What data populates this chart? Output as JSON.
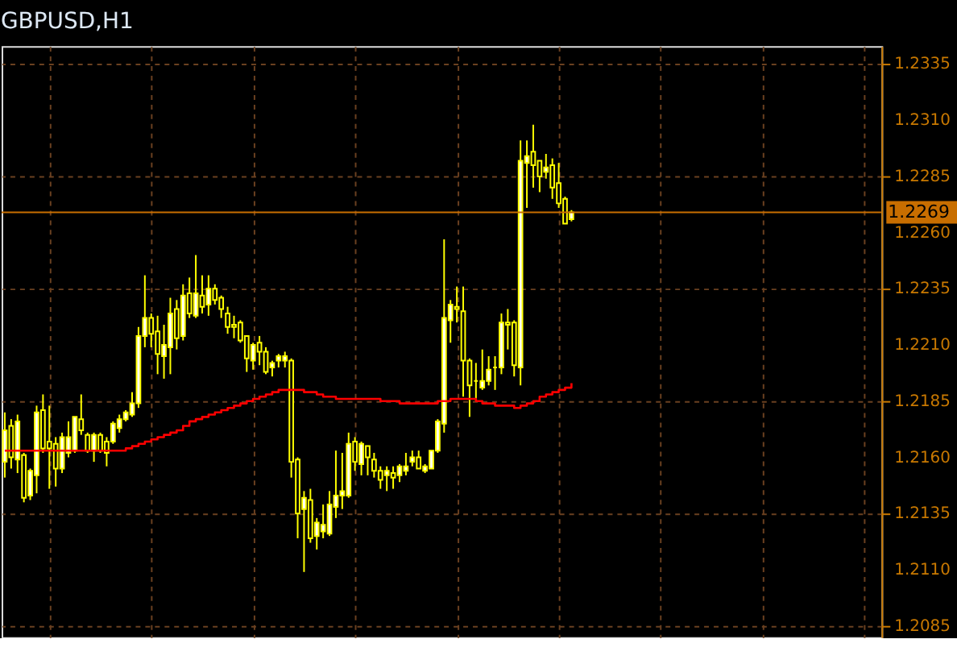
{
  "chart_data": {
    "type": "candlestick",
    "title": "GBPUSD,H1",
    "categories": [
      null,
      null,
      null,
      null,
      null,
      null,
      null,
      null,
      null,
      null,
      null,
      null,
      null,
      null,
      null,
      null,
      null,
      null,
      null,
      null,
      null,
      null,
      null,
      null,
      null,
      null,
      null,
      null,
      null,
      null,
      null,
      null,
      null,
      null,
      null,
      null,
      null,
      null,
      null,
      null,
      null,
      null,
      null,
      null,
      null,
      null,
      null,
      null,
      null,
      null,
      null,
      null,
      null,
      null,
      null,
      null,
      null,
      null,
      null,
      null,
      null,
      null,
      null,
      null,
      null,
      null,
      null,
      null,
      null,
      null,
      null,
      null,
      null,
      null,
      null,
      null,
      null,
      null,
      null,
      null,
      null,
      null,
      null,
      null,
      null,
      null,
      null,
      null,
      null,
      null
    ],
    "series": [
      {
        "color": "#ffff00",
        "ohlc": [
          [
            1.2158,
            1.218,
            1.2151,
            1.2172
          ],
          [
            1.2174,
            1.2177,
            1.2155,
            1.216
          ],
          [
            1.2159,
            1.2179,
            1.2153,
            1.2176
          ],
          [
            1.2161,
            1.2162,
            1.214,
            1.2142
          ],
          [
            1.2143,
            1.2155,
            1.2141,
            1.2154
          ],
          [
            1.2152,
            1.2183,
            1.2144,
            1.218
          ],
          [
            1.2181,
            1.2188,
            1.2162,
            1.2164
          ],
          [
            1.2167,
            1.2183,
            1.2146,
            1.2164
          ],
          [
            1.2166,
            1.2169,
            1.2147,
            1.2155
          ],
          [
            1.2155,
            1.2171,
            1.2153,
            1.2169
          ],
          [
            1.2162,
            1.2176,
            1.216,
            1.2169
          ],
          [
            1.2163,
            1.2178,
            1.2162,
            1.2178
          ],
          [
            1.2177,
            1.2188,
            1.217,
            1.2172
          ],
          [
            1.217,
            1.2171,
            1.2162,
            1.2163
          ],
          [
            1.2163,
            1.2171,
            1.2158,
            1.217
          ],
          [
            1.217,
            1.2171,
            1.2162,
            1.2163
          ],
          [
            1.2167,
            1.2169,
            1.2156,
            1.2162
          ],
          [
            1.2167,
            1.2176,
            1.2166,
            1.2175
          ],
          [
            1.2173,
            1.2179,
            1.2171,
            1.2177
          ],
          [
            1.2177,
            1.2181,
            1.2176,
            1.218
          ],
          [
            1.2179,
            1.2189,
            1.2178,
            1.2184
          ],
          [
            1.2184,
            1.2218,
            1.2182,
            1.2214
          ],
          [
            1.2214,
            1.2241,
            1.2209,
            1.2222
          ],
          [
            1.2222,
            1.2224,
            1.2209,
            1.2215
          ],
          [
            1.2216,
            1.2223,
            1.2197,
            1.2206
          ],
          [
            1.2205,
            1.2219,
            1.2195,
            1.221
          ],
          [
            1.2209,
            1.2231,
            1.2197,
            1.2224
          ],
          [
            1.2226,
            1.223,
            1.2208,
            1.2213
          ],
          [
            1.2214,
            1.2237,
            1.2212,
            1.2232
          ],
          [
            1.2233,
            1.224,
            1.2222,
            1.2224
          ],
          [
            1.2223,
            1.225,
            1.2222,
            1.2233
          ],
          [
            1.2232,
            1.2241,
            1.2224,
            1.2227
          ],
          [
            1.2228,
            1.2241,
            1.2223,
            1.2235
          ],
          [
            1.2235,
            1.2237,
            1.2228,
            1.223
          ],
          [
            1.2231,
            1.2232,
            1.2222,
            1.2226
          ],
          [
            1.2224,
            1.2227,
            1.2215,
            1.2218
          ],
          [
            1.2219,
            1.2223,
            1.2213,
            1.2218
          ],
          [
            1.222,
            1.2221,
            1.2211,
            1.2212
          ],
          [
            1.2214,
            1.2214,
            1.2198,
            1.2204
          ],
          [
            1.2203,
            1.2211,
            1.2199,
            1.221
          ],
          [
            1.2211,
            1.2214,
            1.2201,
            1.2207
          ],
          [
            1.2207,
            1.2209,
            1.2197,
            1.2198
          ],
          [
            1.22,
            1.2203,
            1.2196,
            1.2202
          ],
          [
            1.2203,
            1.2206,
            1.22,
            1.2205
          ],
          [
            1.2203,
            1.2207,
            1.22,
            1.2205
          ],
          [
            1.2203,
            1.2204,
            1.2151,
            1.2158
          ],
          [
            1.2159,
            1.216,
            1.2124,
            1.2135
          ],
          [
            1.2137,
            1.2145,
            1.2109,
            1.2142
          ],
          [
            1.2141,
            1.2146,
            1.2122,
            1.2124
          ],
          [
            1.2125,
            1.2133,
            1.2119,
            1.2131
          ],
          [
            1.2127,
            1.2139,
            1.2124,
            1.213
          ],
          [
            1.2126,
            1.2145,
            1.2125,
            1.2139
          ],
          [
            1.2138,
            1.2163,
            1.2133,
            1.2143
          ],
          [
            1.2143,
            1.2162,
            1.2137,
            1.2145
          ],
          [
            1.2143,
            1.2171,
            1.2142,
            1.2166
          ],
          [
            1.2167,
            1.2169,
            1.2154,
            1.2158
          ],
          [
            1.2157,
            1.2167,
            1.2152,
            1.2166
          ],
          [
            1.2165,
            1.2165,
            1.2152,
            1.216
          ],
          [
            1.2159,
            1.2162,
            1.2151,
            1.2154
          ],
          [
            1.2154,
            1.2156,
            1.2146,
            1.215
          ],
          [
            1.2152,
            1.2156,
            1.2145,
            1.2154
          ],
          [
            1.2153,
            1.2156,
            1.2146,
            1.2151
          ],
          [
            1.2152,
            1.2157,
            1.2149,
            1.2156
          ],
          [
            1.2154,
            1.2162,
            1.2152,
            1.2156
          ],
          [
            1.2158,
            1.2163,
            1.2156,
            1.216
          ],
          [
            1.216,
            1.2163,
            1.2155,
            1.2155
          ],
          [
            1.2154,
            1.2157,
            1.2153,
            1.2156
          ],
          [
            1.2155,
            1.2163,
            1.2155,
            1.2163
          ],
          [
            1.2163,
            1.2177,
            1.2162,
            1.2176
          ],
          [
            1.2175,
            1.2257,
            1.2171,
            1.2222
          ],
          [
            1.2221,
            1.223,
            1.2211,
            1.2228
          ],
          [
            1.2227,
            1.2236,
            1.222,
            1.2226
          ],
          [
            1.2225,
            1.2236,
            1.2187,
            1.2203
          ],
          [
            1.2203,
            1.2204,
            1.2178,
            1.2192
          ],
          [
            1.2194,
            1.2202,
            1.2185,
            1.2194
          ],
          [
            1.2191,
            1.2208,
            1.219,
            1.2194
          ],
          [
            1.2194,
            1.2205,
            1.2192,
            1.2199
          ],
          [
            1.22,
            1.2205,
            1.219,
            1.22
          ],
          [
            1.22,
            1.2224,
            1.2197,
            1.222
          ],
          [
            1.222,
            1.2226,
            1.2208,
            1.2219
          ],
          [
            1.222,
            1.2221,
            1.2196,
            1.2201
          ],
          [
            1.22,
            1.2301,
            1.2192,
            1.2292
          ],
          [
            1.2291,
            1.2301,
            1.2271,
            1.2294
          ],
          [
            1.2296,
            1.2308,
            1.228,
            1.229
          ],
          [
            1.2292,
            1.2292,
            1.2278,
            1.2285
          ],
          [
            1.2287,
            1.2295,
            1.2284,
            1.2289
          ],
          [
            1.229,
            1.2293,
            1.2275,
            1.228
          ],
          [
            1.2282,
            1.2291,
            1.2271,
            1.2273
          ],
          [
            1.2275,
            1.2276,
            1.2264,
            1.2264
          ],
          [
            1.2266,
            1.227,
            1.2265,
            1.2269
          ]
        ]
      },
      {
        "type": "line",
        "color": "#ff0000",
        "values": [
          1.2163,
          1.2163,
          1.2163,
          1.2163,
          1.2163,
          1.2163,
          1.2163,
          1.2163,
          1.2163,
          1.2163,
          1.2163,
          1.2163,
          1.2163,
          1.2163,
          1.2163,
          1.2163,
          1.2163,
          1.2163,
          1.2163,
          1.2164,
          1.2165,
          1.2166,
          1.2167,
          1.2168,
          1.2169,
          1.217,
          1.2171,
          1.2172,
          1.2174,
          1.2176,
          1.2177,
          1.2178,
          1.2179,
          1.218,
          1.2181,
          1.2182,
          1.2183,
          1.2184,
          1.2185,
          1.2186,
          1.2187,
          1.2188,
          1.2189,
          1.219,
          1.219,
          1.219,
          1.219,
          1.2189,
          1.2189,
          1.2188,
          1.2187,
          1.2187,
          1.2186,
          1.2186,
          1.2186,
          1.2186,
          1.2186,
          1.2186,
          1.2186,
          1.2185,
          1.2185,
          1.2185,
          1.2184,
          1.2184,
          1.2184,
          1.2184,
          1.2184,
          1.2184,
          1.2185,
          1.2185,
          1.2186,
          1.2186,
          1.2186,
          1.2186,
          1.2185,
          1.2184,
          1.2184,
          1.2183,
          1.2183,
          1.2183,
          1.2182,
          1.2183,
          1.2184,
          1.2185,
          1.2187,
          1.2188,
          1.2189,
          1.219,
          1.2191,
          1.2193
        ]
      }
    ],
    "ylim": [
      1.208,
      1.2343
    ],
    "yticks": [
      {
        "value": 1.2085,
        "label": "1.2085"
      },
      {
        "value": 1.211,
        "label": "1.2110"
      },
      {
        "value": 1.2135,
        "label": "1.2135"
      },
      {
        "value": 1.216,
        "label": "1.2160"
      },
      {
        "value": 1.2185,
        "label": "1.2185"
      },
      {
        "value": 1.221,
        "label": "1.2210"
      },
      {
        "value": 1.2235,
        "label": "1.2235"
      },
      {
        "value": 1.226,
        "label": "1.2260"
      },
      {
        "value": 1.2285,
        "label": "1.2285"
      },
      {
        "value": 1.231,
        "label": "1.2310"
      },
      {
        "value": 1.2335,
        "label": "1.2335"
      }
    ],
    "ref_lines": [
      {
        "axis": "y",
        "value": 1.2269,
        "label": "1.2269",
        "color": "#c86e00"
      }
    ],
    "grid": true,
    "tick_labels": "y"
  }
}
